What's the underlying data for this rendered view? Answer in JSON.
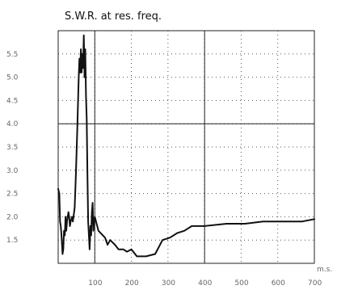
{
  "chart_data": {
    "type": "line",
    "title": "S.W.R. at res. freq.",
    "xlabel": "",
    "ylabel": "",
    "x_unit": "m.s.",
    "xlim": [
      0,
      700
    ],
    "ylim": [
      1.0,
      6.0
    ],
    "grid": true,
    "legend": "none",
    "y_ticks": [
      {
        "value": 5.5,
        "label": "5.5"
      },
      {
        "value": 5.0,
        "label": "5.0"
      },
      {
        "value": 4.5,
        "label": "4.5"
      },
      {
        "value": 4.0,
        "label": "4.0"
      },
      {
        "value": 3.5,
        "label": "3.5"
      },
      {
        "value": 3.0,
        "label": "3.0"
      },
      {
        "value": 2.5,
        "label": "2.5"
      },
      {
        "value": 2.0,
        "label": "2.0"
      },
      {
        "value": 1.5,
        "label": "1.5"
      }
    ],
    "x_ticks": [
      {
        "value": 100,
        "label": "100"
      },
      {
        "value": 200,
        "label": "200"
      },
      {
        "value": 300,
        "label": "300"
      },
      {
        "value": 400,
        "label": "400"
      },
      {
        "value": 500,
        "label": "500"
      },
      {
        "value": 600,
        "label": "600"
      },
      {
        "value": 700,
        "label": "700"
      }
    ],
    "series": [
      {
        "x": [
          0,
          3,
          5,
          7,
          9,
          12,
          14,
          16,
          18,
          20,
          22,
          24,
          26,
          28,
          30,
          32,
          34,
          38,
          40,
          42,
          45,
          48,
          52,
          56,
          58,
          60,
          62,
          64,
          66,
          68,
          70,
          72,
          74,
          76,
          78,
          80,
          82,
          84,
          86,
          88,
          90,
          92,
          94,
          96,
          98,
          100,
          110,
          128,
          135,
          142,
          155,
          165,
          178,
          188,
          200,
          215,
          240,
          265,
          285,
          305,
          325,
          345,
          365,
          400,
          460,
          510,
          560,
          605,
          640,
          667,
          700
        ],
        "y": [
          2.6,
          2.5,
          1.9,
          1.8,
          1.6,
          1.2,
          1.3,
          1.7,
          1.6,
          2.0,
          1.7,
          1.9,
          2.0,
          2.1,
          2.0,
          1.8,
          1.9,
          2.0,
          1.9,
          2.0,
          2.2,
          2.8,
          3.8,
          5.0,
          5.4,
          5.1,
          5.6,
          5.1,
          5.5,
          5.2,
          5.9,
          5.0,
          5.6,
          4.6,
          4.1,
          2.9,
          1.9,
          1.6,
          1.3,
          1.8,
          1.6,
          2.1,
          2.3,
          1.7,
          1.9,
          2.0,
          1.7,
          1.55,
          1.4,
          1.5,
          1.4,
          1.3,
          1.3,
          1.25,
          1.3,
          1.15,
          1.15,
          1.2,
          1.5,
          1.55,
          1.65,
          1.7,
          1.8,
          1.8,
          1.85,
          1.85,
          1.9,
          1.9,
          1.9,
          1.9,
          1.95
        ]
      }
    ]
  }
}
